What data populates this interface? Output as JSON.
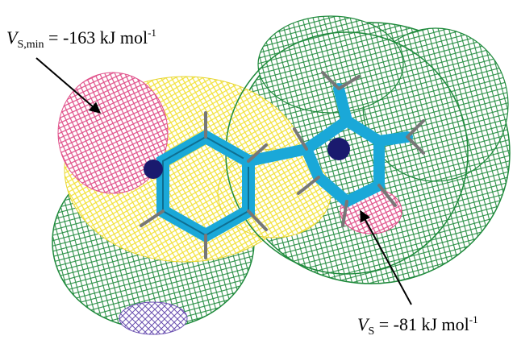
{
  "annotations": [
    {
      "symbol": "V",
      "subscript": "S,min",
      "text": " = -163 kJ mol",
      "superscript": "-1"
    },
    {
      "symbol": "V",
      "subscript": "S",
      "text": " = -81 kJ mol",
      "superscript": "-1"
    }
  ]
}
